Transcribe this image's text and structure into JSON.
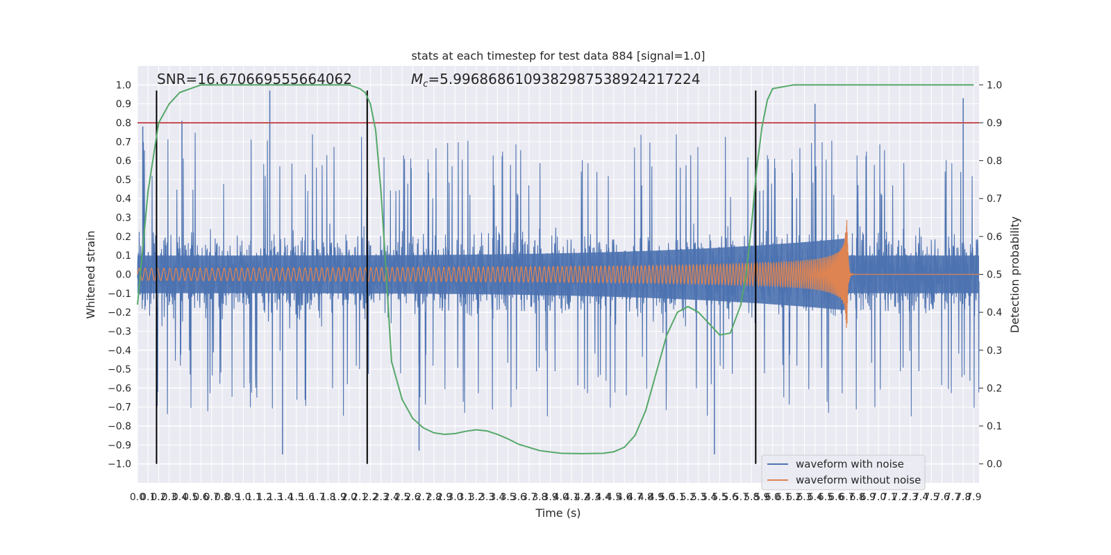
{
  "chart_data": {
    "type": "line",
    "title": "stats at each timestep for test data 884 [signal=1.0]",
    "annotation_snr": "SNR=16.670669555664062",
    "annotation_mc": "$M_c$=5.9968686109382987538924217224",
    "annotation_mc_symbol": "M",
    "annotation_mc_subscript": "c",
    "annotation_mc_value": "=5.9968686109382987538924217224",
    "xlabel": "Time (s)",
    "ylabel_left": "Whitened strain",
    "ylabel_right": "Detection probability",
    "xlim": [
      0.0,
      7.95
    ],
    "ylim_left": [
      -1.1,
      1.1
    ],
    "ylim_right": [
      -0.05,
      1.05
    ],
    "x_ticks": [
      "0.0",
      "0.1",
      "0.2",
      "0.3",
      "0.4",
      "0.5",
      "0.6",
      "0.7",
      "0.8",
      "0.9",
      "1.0",
      "1.1",
      "1.2",
      "1.3",
      "1.4",
      "1.5",
      "1.6",
      "1.7",
      "1.8",
      "1.9",
      "2.0",
      "2.1",
      "2.2",
      "2.3",
      "2.4",
      "2.5",
      "2.6",
      "2.7",
      "2.8",
      "2.9",
      "3.0",
      "3.1",
      "3.2",
      "3.3",
      "3.4",
      "3.5",
      "3.6",
      "3.7",
      "3.8",
      "3.9",
      "4.0",
      "4.1",
      "4.2",
      "4.3",
      "4.4",
      "4.5",
      "4.6",
      "4.7",
      "4.8",
      "4.9",
      "5.0",
      "5.1",
      "5.2",
      "5.3",
      "5.4",
      "5.5",
      "5.6",
      "5.7",
      "5.8",
      "5.9",
      "6.0",
      "6.1",
      "6.2",
      "6.3",
      "6.4",
      "6.5",
      "6.6",
      "6.7",
      "6.8",
      "6.9",
      "7.0",
      "7.1",
      "7.2",
      "7.3",
      "7.4",
      "7.5",
      "7.6",
      "7.7",
      "7.8",
      "7.9"
    ],
    "y_ticks_left": [
      "−1.0",
      "−0.9",
      "−0.8",
      "−0.7",
      "−0.6",
      "−0.5",
      "−0.4",
      "−0.3",
      "−0.2",
      "−0.1",
      "0.0",
      "0.1",
      "0.2",
      "0.3",
      "0.4",
      "0.5",
      "0.6",
      "0.7",
      "0.8",
      "0.9",
      "1.0"
    ],
    "y_ticks_right": [
      "0.0",
      "0.1",
      "0.2",
      "0.3",
      "0.4",
      "0.5",
      "0.6",
      "0.7",
      "0.8",
      "0.9",
      "1.0"
    ],
    "threshold": 0.9,
    "vertical_lines_x": [
      0.18,
      2.17,
      5.84
    ],
    "vertical_lines_range": [
      -1.0,
      0.97
    ],
    "merger_time": 6.7,
    "series": [
      {
        "name": "waveform with noise",
        "color": "#4c72b0"
      },
      {
        "name": "waveform without noise",
        "color": "#dd8452"
      }
    ],
    "detection_probability": {
      "color": "#55a868",
      "x": [
        0.0,
        0.1,
        0.2,
        0.3,
        0.4,
        0.5,
        0.6,
        0.8,
        1.0,
        1.5,
        2.0,
        2.1,
        2.15,
        2.2,
        2.25,
        2.3,
        2.35,
        2.4,
        2.5,
        2.6,
        2.7,
        2.8,
        2.9,
        3.0,
        3.1,
        3.2,
        3.3,
        3.4,
        3.5,
        3.6,
        3.8,
        4.0,
        4.2,
        4.4,
        4.5,
        4.6,
        4.7,
        4.8,
        4.9,
        5.0,
        5.1,
        5.2,
        5.3,
        5.4,
        5.5,
        5.6,
        5.7,
        5.75,
        5.8,
        5.85,
        5.9,
        5.95,
        6.0,
        6.2,
        6.5,
        7.0,
        7.9
      ],
      "y": [
        0.42,
        0.72,
        0.9,
        0.95,
        0.98,
        0.99,
        1.0,
        1.0,
        1.0,
        1.0,
        1.0,
        0.99,
        0.98,
        0.95,
        0.88,
        0.72,
        0.5,
        0.27,
        0.17,
        0.12,
        0.095,
        0.082,
        0.078,
        0.08,
        0.086,
        0.09,
        0.087,
        0.078,
        0.066,
        0.052,
        0.035,
        0.028,
        0.027,
        0.028,
        0.032,
        0.044,
        0.075,
        0.14,
        0.24,
        0.34,
        0.4,
        0.415,
        0.4,
        0.37,
        0.34,
        0.345,
        0.42,
        0.5,
        0.63,
        0.78,
        0.89,
        0.96,
        0.99,
        1.0,
        1.0,
        1.0,
        1.0
      ]
    },
    "noise_peaks": [
      {
        "x": 0.05,
        "y": 0.78
      },
      {
        "x": 0.42,
        "y": 0.81
      },
      {
        "x": 1.25,
        "y": 0.97
      },
      {
        "x": 1.37,
        "y": -0.95
      },
      {
        "x": 2.66,
        "y": -0.93
      },
      {
        "x": 5.45,
        "y": -0.95
      },
      {
        "x": 6.4,
        "y": 0.9
      },
      {
        "x": 7.8,
        "y": 0.93
      }
    ],
    "legend_position": "lower right",
    "grid": true
  }
}
